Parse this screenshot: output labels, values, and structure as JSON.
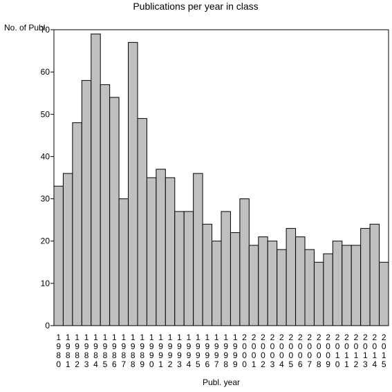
{
  "chart_data": {
    "type": "bar",
    "title": "Publications per year in class",
    "ylabel": "No. of Publ.",
    "xlabel": "Publ. year",
    "ylim": [
      0,
      70
    ],
    "yticks": [
      0,
      10,
      20,
      30,
      40,
      50,
      60,
      70
    ],
    "grid": false,
    "legend": "none",
    "bar_color": "#c0c0c0",
    "categories": [
      "1980",
      "1981",
      "1982",
      "1983",
      "1984",
      "1985",
      "1986",
      "1987",
      "1988",
      "1989",
      "1990",
      "1991",
      "1992",
      "1993",
      "1994",
      "1995",
      "1996",
      "1997",
      "1998",
      "1999",
      "2000",
      "2001",
      "2002",
      "2003",
      "2004",
      "2005",
      "2006",
      "2007",
      "2008",
      "2009",
      "2010",
      "2011",
      "2012",
      "2013",
      "2014",
      "2015"
    ],
    "values": [
      33,
      36,
      48,
      58,
      69,
      57,
      54,
      30,
      67,
      49,
      35,
      37,
      35,
      27,
      27,
      36,
      24,
      20,
      27,
      22,
      30,
      19,
      21,
      20,
      18,
      23,
      21,
      18,
      15,
      17,
      20,
      19,
      19,
      23,
      24,
      15
    ]
  }
}
